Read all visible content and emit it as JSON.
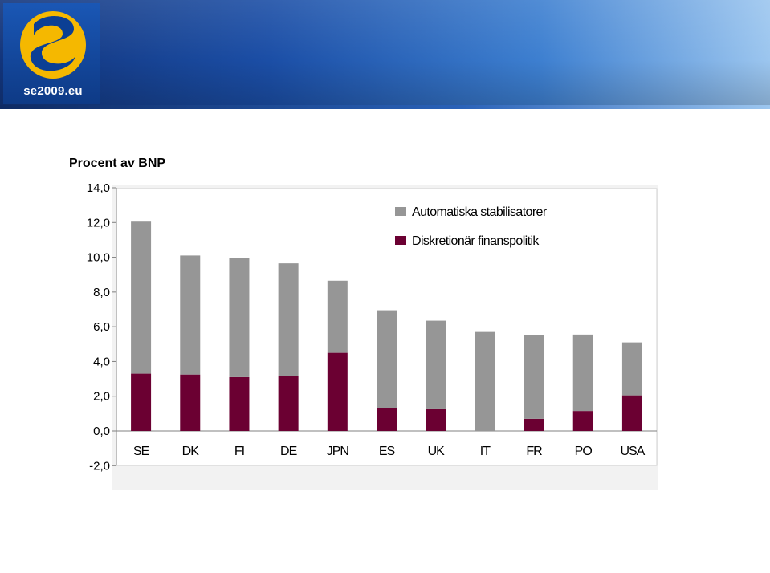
{
  "banner": {
    "logo_text": "se2009.eu",
    "colors": {
      "banner_dark": "#12357c",
      "banner_light": "#9cc6ef",
      "logo_yellow": "#f5b800"
    }
  },
  "chart_data": {
    "type": "bar",
    "stacked": true,
    "title": "Procent av BNP",
    "categories": [
      "SE",
      "DK",
      "FI",
      "DE",
      "JPN",
      "ES",
      "UK",
      "IT",
      "FR",
      "PO",
      "USA"
    ],
    "series": [
      {
        "name": "Diskretionär finanspolitik",
        "color": "#6b0032",
        "values": [
          3.3,
          3.25,
          3.1,
          3.15,
          4.5,
          1.3,
          1.25,
          0.0,
          0.7,
          1.15,
          2.05
        ]
      },
      {
        "name": "Automatiska stabilisatorer",
        "color": "#969696",
        "values": [
          8.75,
          6.85,
          6.85,
          6.5,
          4.15,
          5.65,
          5.1,
          5.7,
          4.8,
          4.4,
          3.05
        ]
      }
    ],
    "legend_order": [
      "Automatiska stabilisatorer",
      "Diskretionär finanspolitik"
    ],
    "y_ticks": [
      "14,0",
      "12,0",
      "10,0",
      "8,0",
      "6,0",
      "4,0",
      "2,0",
      "0,0",
      "-2,0"
    ],
    "ylim": [
      -2,
      14
    ],
    "legend_position": "top-right",
    "grid": false
  }
}
